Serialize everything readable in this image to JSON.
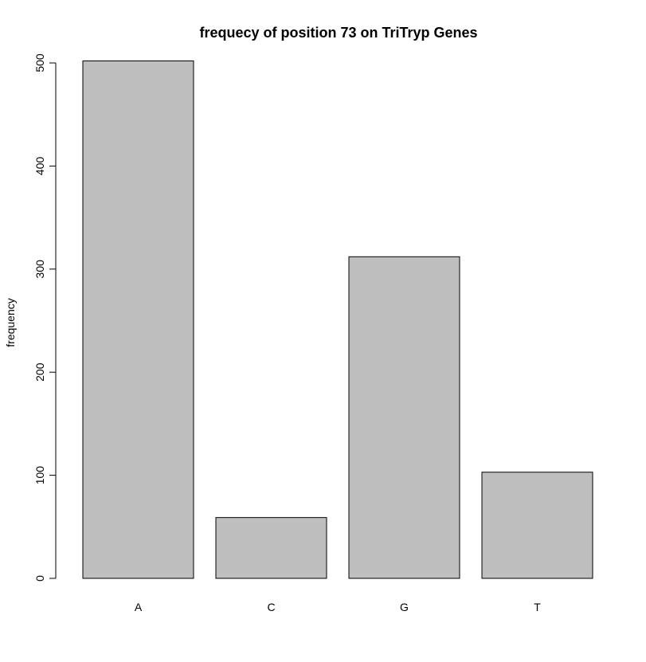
{
  "chart_data": {
    "type": "bar",
    "title": "frequecy of position 73 on TriTryp Genes",
    "xlabel": "",
    "ylabel": "frequency",
    "categories": [
      "A",
      "C",
      "G",
      "T"
    ],
    "values": [
      502,
      59,
      312,
      103
    ],
    "ylim": [
      0,
      500
    ],
    "yticks": [
      0,
      100,
      200,
      300,
      400,
      500
    ],
    "grid": false,
    "bar_color": "#bebebe",
    "edge_color": "#000000"
  }
}
